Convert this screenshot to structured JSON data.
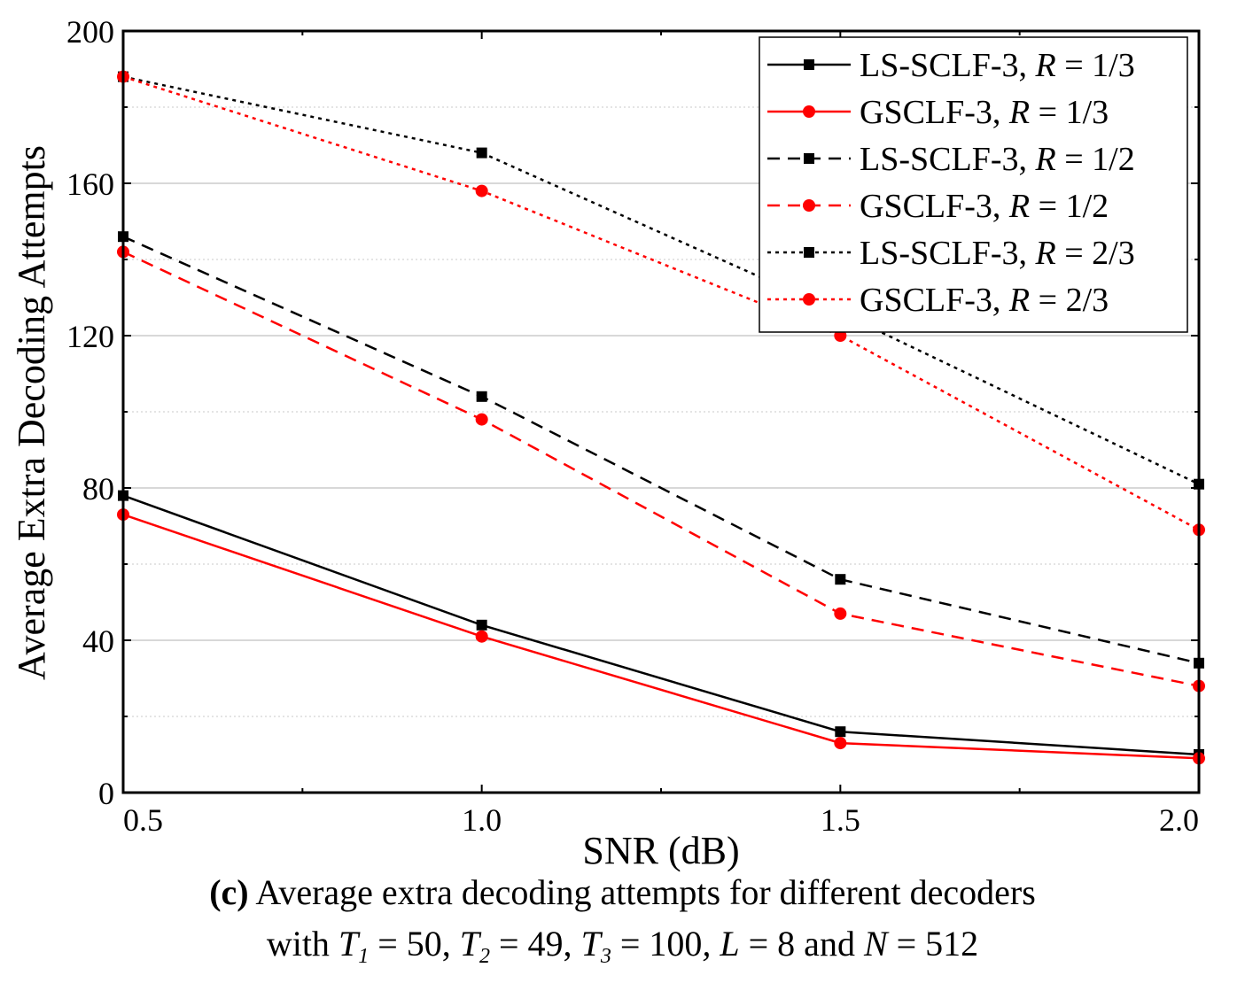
{
  "chart_data": {
    "type": "line",
    "xlabel": "SNR (dB)",
    "ylabel": "Average Extra Decoding Attempts",
    "x": [
      0.5,
      1.0,
      1.5,
      2.0
    ],
    "xlim": [
      0.5,
      2.0
    ],
    "ylim": [
      0,
      200
    ],
    "xticks": [
      "0.5",
      "1.0",
      "1.5",
      "2.0"
    ],
    "yticks": [
      "0",
      "40",
      "80",
      "120",
      "160",
      "200"
    ],
    "grid": true,
    "legend_position": "top-right",
    "series": [
      {
        "name": "LS-SCLF-3, R = 1/3",
        "name_prefix": "LS-SCLF-3, ",
        "name_var": "R",
        "name_suffix": " = 1/3",
        "color": "#000000",
        "dash": "solid",
        "marker": "square",
        "values": [
          78,
          44,
          16,
          10
        ]
      },
      {
        "name": "GSCLF-3, R = 1/3",
        "name_prefix": "GSCLF-3, ",
        "name_var": "R",
        "name_suffix": " = 1/3",
        "color": "#ff0000",
        "dash": "solid",
        "marker": "circle",
        "values": [
          73,
          41,
          13,
          9
        ]
      },
      {
        "name": "LS-SCLF-3, R = 1/2",
        "name_prefix": "LS-SCLF-3, ",
        "name_var": "R",
        "name_suffix": " = 1/2",
        "color": "#000000",
        "dash": "dashed",
        "marker": "square",
        "values": [
          146,
          104,
          56,
          34
        ]
      },
      {
        "name": "GSCLF-3, R = 1/2",
        "name_prefix": "GSCLF-3, ",
        "name_var": "R",
        "name_suffix": " = 1/2",
        "color": "#ff0000",
        "dash": "dashed",
        "marker": "circle",
        "values": [
          142,
          98,
          47,
          28
        ]
      },
      {
        "name": "LS-SCLF-3, R = 2/3",
        "name_prefix": "LS-SCLF-3, ",
        "name_var": "R",
        "name_suffix": " = 2/3",
        "color": "#000000",
        "dash": "dotted",
        "marker": "square",
        "values": [
          188,
          168,
          126,
          81
        ]
      },
      {
        "name": "GSCLF-3, R = 2/3",
        "name_prefix": "GSCLF-3, ",
        "name_var": "R",
        "name_suffix": " = 2/3",
        "color": "#ff0000",
        "dash": "dotted",
        "marker": "circle",
        "values": [
          188,
          158,
          120,
          69
        ]
      }
    ]
  },
  "caption": {
    "label": "(c)",
    "line1_text": " Average extra decoding attempts for different decoders",
    "line2": {
      "with": "with ",
      "T": "T",
      "sub1": "1",
      "v1": " = 50, ",
      "sub2": "2",
      "v2": " = 49, ",
      "sub3": "3",
      "v3": " = 100",
      "comma": ", ",
      "L": "L",
      "vL": " = 8 and ",
      "N": "N",
      "vN": " = 512"
    }
  }
}
